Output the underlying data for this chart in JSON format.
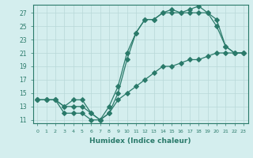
{
  "xlabel": "Humidex (Indice chaleur)",
  "ylabel": "",
  "bg_color": "#d4eeee",
  "grid_color": "#b8d8d8",
  "line_color": "#2a7a6a",
  "xlim": [
    -0.5,
    23.5
  ],
  "ylim": [
    10.5,
    28.2
  ],
  "xticks": [
    0,
    1,
    2,
    3,
    4,
    5,
    6,
    7,
    8,
    9,
    10,
    11,
    12,
    13,
    14,
    15,
    16,
    17,
    18,
    19,
    20,
    21,
    22,
    23
  ],
  "yticks": [
    11,
    13,
    15,
    17,
    19,
    21,
    23,
    25,
    27
  ],
  "line1_x": [
    0,
    1,
    2,
    3,
    4,
    5,
    6,
    7,
    8,
    9,
    10,
    11,
    12,
    13,
    14,
    15,
    16,
    17,
    18,
    19,
    20,
    21,
    22,
    23
  ],
  "line1_y": [
    14,
    14,
    14,
    12,
    12,
    12,
    11,
    11,
    13,
    16,
    21,
    24,
    26,
    26,
    27,
    27,
    27,
    27,
    27,
    27,
    26,
    22,
    21,
    21
  ],
  "line2_x": [
    0,
    1,
    2,
    3,
    4,
    5,
    6,
    7,
    8,
    9,
    10,
    11,
    12,
    13,
    14,
    15,
    16,
    17,
    18,
    19,
    20,
    21,
    22,
    23
  ],
  "line2_y": [
    14,
    14,
    14,
    13,
    13,
    13,
    12,
    11,
    12,
    15,
    20,
    24,
    26,
    26,
    27,
    27.5,
    27,
    27.5,
    28,
    27,
    25,
    22,
    21,
    21
  ],
  "line3_x": [
    0,
    1,
    2,
    3,
    4,
    5,
    6,
    7,
    8,
    9,
    10,
    11,
    12,
    13,
    14,
    15,
    16,
    17,
    18,
    19,
    20,
    21,
    22,
    23
  ],
  "line3_y": [
    14,
    14,
    14,
    13,
    14,
    14,
    12,
    11,
    12,
    14,
    15,
    16,
    17,
    18,
    19,
    19,
    19.5,
    20,
    20,
    20.5,
    21,
    21,
    21,
    21
  ]
}
